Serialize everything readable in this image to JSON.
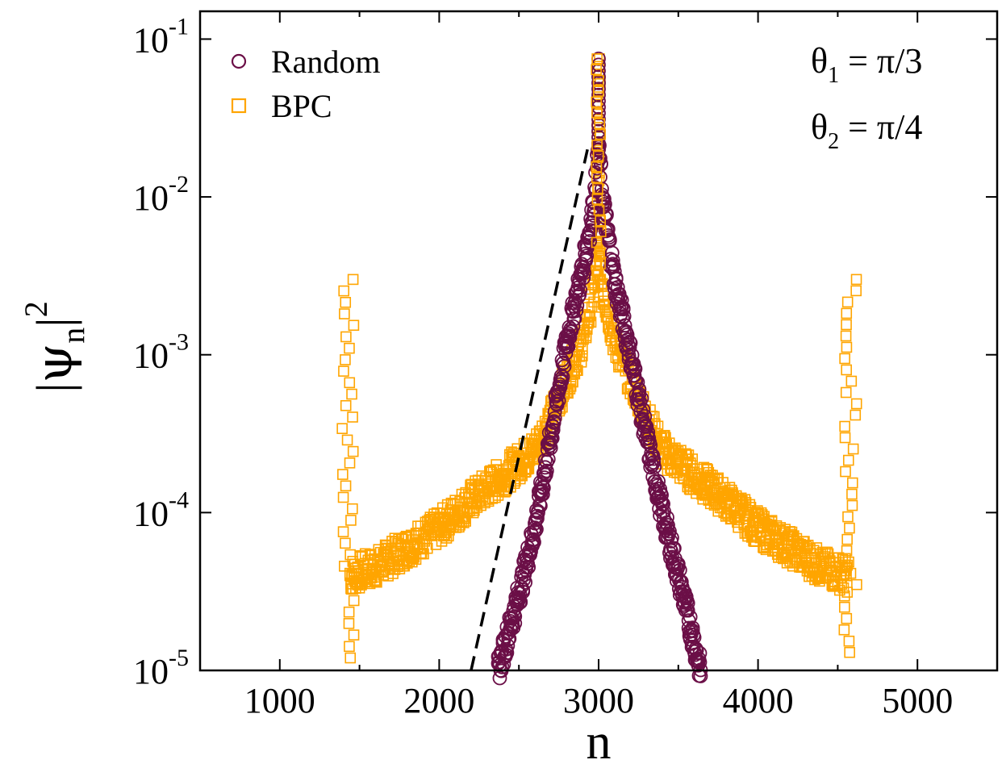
{
  "chart_data": {
    "type": "scatter",
    "title": "",
    "xlabel": "n",
    "ylabel": "|ψn|^2",
    "ylabel_parts": {
      "left_bar": "|",
      "psi": "ψ",
      "subscript": "n",
      "right_bar": "|",
      "exponent": "2"
    },
    "xlim": [
      500,
      5500
    ],
    "ylim": [
      1e-05,
      0.15
    ],
    "y_scale": "log",
    "x_ticks": [
      1000,
      2000,
      3000,
      4000,
      5000
    ],
    "x_tick_labels": [
      "1000",
      "2000",
      "3000",
      "4000",
      "5000"
    ],
    "y_ticks": [
      {
        "value": 0.1,
        "base": "10",
        "exp": "-1"
      },
      {
        "value": 0.01,
        "base": "10",
        "exp": "-2"
      },
      {
        "value": 0.001,
        "base": "10",
        "exp": "-3"
      },
      {
        "value": 0.0001,
        "base": "10",
        "exp": "-4"
      },
      {
        "value": 1e-05,
        "base": "10",
        "exp": "-5"
      }
    ],
    "legend_position": "top-left",
    "annotations": [
      {
        "symbol": "θ",
        "subscript": "1",
        "text": " = π/3"
      },
      {
        "symbol": "θ",
        "subscript": "2",
        "text": " = π/4"
      }
    ],
    "series": [
      {
        "name": "Random",
        "marker": "circle",
        "color": "#6b0f47",
        "peak": {
          "x": 3000,
          "y": 0.075
        },
        "left_rise": [
          {
            "x": 2370,
            "y": 1e-05
          },
          {
            "x": 2500,
            "y": 3e-05
          },
          {
            "x": 2600,
            "y": 8e-05
          },
          {
            "x": 2700,
            "y": 0.0003
          },
          {
            "x": 2800,
            "y": 0.0012
          },
          {
            "x": 2900,
            "y": 0.0035
          },
          {
            "x": 2970,
            "y": 0.009
          },
          {
            "x": 3000,
            "y": 0.02
          }
        ],
        "right_fall": [
          {
            "x": 3000,
            "y": 0.02
          },
          {
            "x": 3030,
            "y": 0.009
          },
          {
            "x": 3100,
            "y": 0.003
          },
          {
            "x": 3200,
            "y": 0.001
          },
          {
            "x": 3300,
            "y": 0.0003
          },
          {
            "x": 3400,
            "y": 0.0001
          },
          {
            "x": 3500,
            "y": 4e-05
          },
          {
            "x": 3640,
            "y": 1e-05
          }
        ]
      },
      {
        "name": "BPC",
        "marker": "square",
        "color": "#ffa500",
        "peak": {
          "x": 3000,
          "y": 0.075
        },
        "profile": [
          {
            "x": 1440,
            "y": 4e-05
          },
          {
            "x": 1600,
            "y": 4.5e-05
          },
          {
            "x": 1800,
            "y": 6e-05
          },
          {
            "x": 2000,
            "y": 8e-05
          },
          {
            "x": 2200,
            "y": 0.00012
          },
          {
            "x": 2400,
            "y": 0.00017
          },
          {
            "x": 2600,
            "y": 0.00025
          },
          {
            "x": 2700,
            "y": 0.0004
          },
          {
            "x": 2800,
            "y": 0.0007
          },
          {
            "x": 2900,
            "y": 0.0012
          },
          {
            "x": 2970,
            "y": 0.0025
          },
          {
            "x": 3000,
            "y": 0.005
          },
          {
            "x": 3030,
            "y": 0.0025
          },
          {
            "x": 3100,
            "y": 0.0012
          },
          {
            "x": 3200,
            "y": 0.0007
          },
          {
            "x": 3300,
            "y": 0.0004
          },
          {
            "x": 3400,
            "y": 0.00025
          },
          {
            "x": 3600,
            "y": 0.00017
          },
          {
            "x": 3800,
            "y": 0.00012
          },
          {
            "x": 4000,
            "y": 8e-05
          },
          {
            "x": 4200,
            "y": 6e-05
          },
          {
            "x": 4400,
            "y": 4.5e-05
          },
          {
            "x": 4560,
            "y": 4e-05
          }
        ],
        "edge_peaks": [
          {
            "x": 1430,
            "y_top": 0.003,
            "y_bottom": 1.2e-05
          },
          {
            "x": 4580,
            "y_top": 0.003,
            "y_bottom": 1.3e-05
          }
        ]
      }
    ],
    "reference_line": {
      "style": "dashed",
      "color": "#000000",
      "points": [
        {
          "x": 2200,
          "y": 1e-05
        },
        {
          "x": 2930,
          "y": 0.02
        }
      ]
    }
  }
}
